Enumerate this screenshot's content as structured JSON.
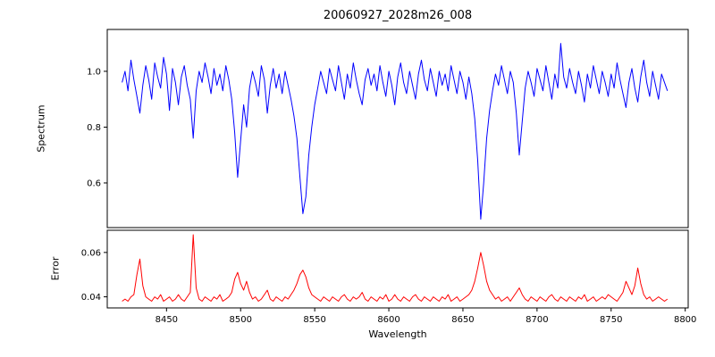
{
  "chart_data": {
    "type": "line",
    "title": "20060927_2028m26_008",
    "xlabel": "Wavelength",
    "xlim": [
      8410,
      8802
    ],
    "xticks": [
      8450,
      8500,
      8550,
      8600,
      8650,
      8700,
      8750,
      8800
    ],
    "xtick_labels": [
      "8450",
      "8500",
      "8550",
      "8600",
      "8650",
      "8700",
      "8750",
      "8800"
    ],
    "x_start": 8420,
    "x_step": 2,
    "n_points": 185,
    "grid": false,
    "legend": "none",
    "panels": [
      {
        "name": "spectrum",
        "ylabel": "Spectrum",
        "color": "#0000ff",
        "ylim": [
          0.44,
          1.15
        ],
        "yticks": [
          0.6,
          0.8,
          1.0
        ],
        "ytick_labels": [
          "0.6",
          "0.8",
          "1.0"
        ],
        "absorption_features": [
          {
            "wavelength": 8498,
            "depth": 0.62
          },
          {
            "wavelength": 8542,
            "depth": 0.49
          },
          {
            "wavelength": 8662,
            "depth": 0.47
          },
          {
            "wavelength": 8468,
            "depth": 0.76
          },
          {
            "wavelength": 8688,
            "depth": 0.7
          }
        ],
        "values": [
          0.96,
          1.0,
          0.93,
          1.04,
          0.97,
          0.91,
          0.85,
          0.95,
          1.02,
          0.97,
          0.9,
          1.03,
          0.98,
          0.94,
          1.05,
          0.99,
          0.86,
          1.01,
          0.96,
          0.88,
          0.98,
          1.02,
          0.95,
          0.9,
          0.76,
          0.93,
          1.0,
          0.96,
          1.03,
          0.98,
          0.92,
          1.01,
          0.95,
          0.99,
          0.93,
          1.02,
          0.97,
          0.9,
          0.78,
          0.62,
          0.75,
          0.88,
          0.8,
          0.94,
          1.0,
          0.96,
          0.91,
          1.02,
          0.97,
          0.85,
          0.95,
          1.01,
          0.94,
          0.99,
          0.92,
          1.0,
          0.95,
          0.9,
          0.84,
          0.76,
          0.62,
          0.49,
          0.55,
          0.7,
          0.8,
          0.88,
          0.94,
          1.0,
          0.96,
          0.92,
          1.01,
          0.97,
          0.93,
          1.02,
          0.96,
          0.9,
          0.99,
          0.94,
          1.03,
          0.97,
          0.92,
          0.88,
          0.97,
          1.01,
          0.95,
          0.99,
          0.93,
          1.02,
          0.96,
          0.91,
          1.0,
          0.95,
          0.88,
          0.98,
          1.03,
          0.96,
          0.92,
          1.0,
          0.95,
          0.9,
          0.99,
          1.04,
          0.97,
          0.93,
          1.01,
          0.96,
          0.91,
          1.0,
          0.95,
          0.99,
          0.93,
          1.02,
          0.97,
          0.92,
          1.0,
          0.96,
          0.9,
          0.98,
          0.92,
          0.83,
          0.68,
          0.47,
          0.6,
          0.76,
          0.86,
          0.93,
          0.99,
          0.95,
          1.02,
          0.97,
          0.92,
          1.0,
          0.96,
          0.85,
          0.7,
          0.82,
          0.94,
          1.0,
          0.96,
          0.91,
          1.01,
          0.97,
          0.93,
          1.02,
          0.96,
          0.9,
          0.99,
          0.94,
          1.1,
          0.98,
          0.94,
          1.01,
          0.96,
          0.92,
          1.0,
          0.95,
          0.89,
          0.99,
          0.94,
          1.02,
          0.97,
          0.92,
          1.0,
          0.96,
          0.91,
          0.99,
          0.94,
          1.03,
          0.97,
          0.92,
          0.87,
          0.96,
          1.01,
          0.94,
          0.89,
          0.98,
          1.04,
          0.96,
          0.91,
          1.0,
          0.95,
          0.9,
          0.99,
          0.96,
          0.93
        ]
      },
      {
        "name": "error",
        "ylabel": "Error",
        "color": "#ff0000",
        "ylim": [
          0.035,
          0.07
        ],
        "yticks": [
          0.04,
          0.06
        ],
        "ytick_labels": [
          "0.04",
          "0.06"
        ],
        "values": [
          0.038,
          0.039,
          0.038,
          0.04,
          0.041,
          0.05,
          0.057,
          0.045,
          0.04,
          0.039,
          0.038,
          0.04,
          0.039,
          0.041,
          0.038,
          0.039,
          0.04,
          0.038,
          0.039,
          0.041,
          0.039,
          0.038,
          0.04,
          0.042,
          0.068,
          0.044,
          0.039,
          0.038,
          0.04,
          0.039,
          0.038,
          0.04,
          0.039,
          0.041,
          0.038,
          0.039,
          0.04,
          0.042,
          0.048,
          0.051,
          0.046,
          0.043,
          0.047,
          0.042,
          0.039,
          0.04,
          0.038,
          0.039,
          0.041,
          0.043,
          0.039,
          0.038,
          0.04,
          0.039,
          0.038,
          0.04,
          0.039,
          0.041,
          0.043,
          0.046,
          0.05,
          0.052,
          0.049,
          0.044,
          0.041,
          0.04,
          0.039,
          0.038,
          0.04,
          0.039,
          0.038,
          0.04,
          0.039,
          0.038,
          0.04,
          0.041,
          0.039,
          0.038,
          0.04,
          0.039,
          0.04,
          0.042,
          0.039,
          0.038,
          0.04,
          0.039,
          0.038,
          0.04,
          0.039,
          0.041,
          0.038,
          0.039,
          0.041,
          0.039,
          0.038,
          0.04,
          0.039,
          0.038,
          0.04,
          0.041,
          0.039,
          0.038,
          0.04,
          0.039,
          0.038,
          0.04,
          0.039,
          0.038,
          0.04,
          0.039,
          0.041,
          0.038,
          0.039,
          0.04,
          0.038,
          0.039,
          0.04,
          0.041,
          0.043,
          0.047,
          0.053,
          0.06,
          0.054,
          0.047,
          0.043,
          0.041,
          0.039,
          0.04,
          0.038,
          0.039,
          0.04,
          0.038,
          0.04,
          0.042,
          0.044,
          0.041,
          0.039,
          0.038,
          0.04,
          0.039,
          0.038,
          0.04,
          0.039,
          0.038,
          0.04,
          0.041,
          0.039,
          0.038,
          0.04,
          0.039,
          0.038,
          0.04,
          0.039,
          0.038,
          0.04,
          0.039,
          0.041,
          0.038,
          0.039,
          0.04,
          0.038,
          0.039,
          0.04,
          0.039,
          0.041,
          0.04,
          0.039,
          0.038,
          0.04,
          0.042,
          0.047,
          0.044,
          0.041,
          0.045,
          0.053,
          0.046,
          0.041,
          0.039,
          0.04,
          0.038,
          0.039,
          0.04,
          0.039,
          0.038,
          0.039
        ]
      }
    ]
  }
}
